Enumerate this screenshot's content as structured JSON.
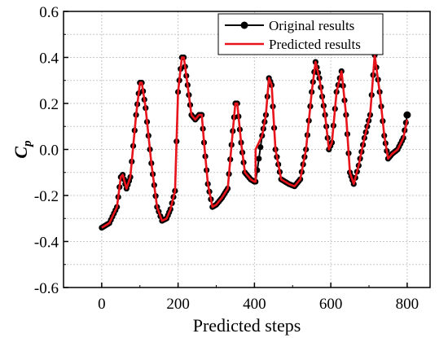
{
  "chart_data": {
    "type": "line",
    "xlabel": "Predicted steps",
    "ylabel": "C",
    "ylabel_subscript": "p",
    "xlim": [
      -100,
      860
    ],
    "ylim": [
      -0.6,
      0.6
    ],
    "x_ticks": [
      0,
      200,
      400,
      600,
      800
    ],
    "y_ticks": [
      -0.6,
      -0.4,
      -0.2,
      0.0,
      0.2,
      0.4,
      0.6
    ],
    "x_tick_labels": [
      "0",
      "200",
      "400",
      "600",
      "800"
    ],
    "y_tick_labels": [
      "-0.6",
      "-0.4",
      "-0.2",
      "0.0",
      "0.2",
      "0.4",
      "0.6"
    ],
    "grid": true,
    "legend_position": "top-right",
    "series": [
      {
        "name": "Original results",
        "style": "line-with-dots",
        "color": "#000000",
        "points": [
          [
            0,
            -0.34
          ],
          [
            20,
            -0.32
          ],
          [
            40,
            -0.25
          ],
          [
            50,
            -0.12
          ],
          [
            55,
            -0.11
          ],
          [
            65,
            -0.17
          ],
          [
            75,
            -0.12
          ],
          [
            90,
            0.15
          ],
          [
            100,
            0.29
          ],
          [
            105,
            0.29
          ],
          [
            115,
            0.18
          ],
          [
            130,
            -0.06
          ],
          [
            145,
            -0.25
          ],
          [
            158,
            -0.31
          ],
          [
            170,
            -0.3
          ],
          [
            180,
            -0.26
          ],
          [
            192,
            -0.18
          ],
          [
            200,
            0.25
          ],
          [
            210,
            0.4
          ],
          [
            215,
            0.4
          ],
          [
            225,
            0.28
          ],
          [
            235,
            0.15
          ],
          [
            245,
            0.13
          ],
          [
            255,
            0.15
          ],
          [
            262,
            0.15
          ],
          [
            268,
            0.03
          ],
          [
            278,
            -0.15
          ],
          [
            290,
            -0.25
          ],
          [
            300,
            -0.24
          ],
          [
            315,
            -0.21
          ],
          [
            330,
            -0.17
          ],
          [
            340,
            0.02
          ],
          [
            350,
            0.2
          ],
          [
            355,
            0.2
          ],
          [
            365,
            0.03
          ],
          [
            375,
            -0.1
          ],
          [
            390,
            -0.13
          ],
          [
            400,
            -0.14
          ],
          [
            403,
            -0.14
          ],
          [
            420,
            0.06
          ],
          [
            430,
            0.15
          ],
          [
            438,
            0.31
          ],
          [
            445,
            0.28
          ],
          [
            455,
            0.0
          ],
          [
            470,
            -0.13
          ],
          [
            490,
            -0.15
          ],
          [
            505,
            -0.16
          ],
          [
            520,
            -0.13
          ],
          [
            535,
            0.0
          ],
          [
            550,
            0.25
          ],
          [
            560,
            0.38
          ],
          [
            570,
            0.31
          ],
          [
            585,
            0.15
          ],
          [
            595,
            0.0
          ],
          [
            603,
            0.03
          ],
          [
            615,
            0.25
          ],
          [
            628,
            0.34
          ],
          [
            640,
            0.15
          ],
          [
            650,
            -0.1
          ],
          [
            660,
            -0.15
          ],
          [
            673,
            -0.07
          ],
          [
            688,
            0.05
          ],
          [
            703,
            0.15
          ],
          [
            715,
            0.41
          ],
          [
            728,
            0.25
          ],
          [
            740,
            0.06
          ],
          [
            750,
            -0.04
          ],
          [
            760,
            -0.02
          ],
          [
            775,
            0.0
          ],
          [
            790,
            0.05
          ],
          [
            800,
            0.15
          ]
        ]
      },
      {
        "name": "Predicted results",
        "style": "line",
        "color": "#e8141c",
        "points": [
          [
            0,
            -0.34
          ],
          [
            20,
            -0.32
          ],
          [
            40,
            -0.25
          ],
          [
            50,
            -0.12
          ],
          [
            55,
            -0.11
          ],
          [
            65,
            -0.17
          ],
          [
            75,
            -0.12
          ],
          [
            90,
            0.15
          ],
          [
            100,
            0.29
          ],
          [
            105,
            0.29
          ],
          [
            115,
            0.18
          ],
          [
            130,
            -0.06
          ],
          [
            145,
            -0.25
          ],
          [
            158,
            -0.31
          ],
          [
            170,
            -0.3
          ],
          [
            180,
            -0.26
          ],
          [
            192,
            -0.18
          ],
          [
            200,
            0.25
          ],
          [
            210,
            0.4
          ],
          [
            215,
            0.4
          ],
          [
            225,
            0.28
          ],
          [
            235,
            0.15
          ],
          [
            245,
            0.13
          ],
          [
            255,
            0.15
          ],
          [
            262,
            0.15
          ],
          [
            268,
            0.03
          ],
          [
            278,
            -0.15
          ],
          [
            290,
            -0.25
          ],
          [
            300,
            -0.24
          ],
          [
            315,
            -0.21
          ],
          [
            330,
            -0.17
          ],
          [
            340,
            0.02
          ],
          [
            350,
            0.2
          ],
          [
            355,
            0.2
          ],
          [
            365,
            0.03
          ],
          [
            375,
            -0.1
          ],
          [
            390,
            -0.13
          ],
          [
            400,
            -0.14
          ],
          [
            403,
            -0.14
          ],
          [
            403,
            0.0
          ],
          [
            420,
            0.06
          ],
          [
            430,
            0.15
          ],
          [
            438,
            0.31
          ],
          [
            445,
            0.28
          ],
          [
            455,
            0.0
          ],
          [
            470,
            -0.13
          ],
          [
            490,
            -0.15
          ],
          [
            505,
            -0.16
          ],
          [
            520,
            -0.13
          ],
          [
            535,
            0.0
          ],
          [
            550,
            0.25
          ],
          [
            560,
            0.38
          ],
          [
            570,
            0.31
          ],
          [
            585,
            0.15
          ],
          [
            595,
            0.0
          ],
          [
            603,
            0.03
          ],
          [
            615,
            0.25
          ],
          [
            628,
            0.34
          ],
          [
            640,
            0.15
          ],
          [
            650,
            -0.1
          ],
          [
            660,
            -0.15
          ],
          [
            673,
            -0.07
          ],
          [
            688,
            0.05
          ],
          [
            703,
            0.15
          ],
          [
            715,
            0.41
          ],
          [
            728,
            0.25
          ],
          [
            740,
            0.06
          ],
          [
            750,
            -0.04
          ],
          [
            760,
            -0.02
          ],
          [
            775,
            0.0
          ],
          [
            790,
            0.05
          ],
          [
            800,
            0.13
          ]
        ]
      }
    ]
  }
}
